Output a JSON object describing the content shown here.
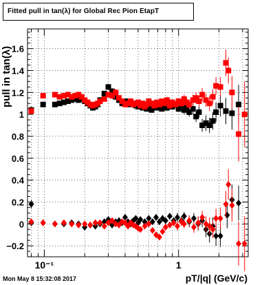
{
  "chart_data": {
    "type": "scatter",
    "title": "Fitted pull in tan(λ) for Global Rec Pion EtapT",
    "xlabel": "pT/|q| (GeV/c)",
    "ylabel": "pull in tan(λ)",
    "xscale": "log",
    "xlim": [
      0.075,
      3.3
    ],
    "ylim": [
      -0.3,
      1.78
    ],
    "grid": true,
    "x_major_ticks": [
      {
        "value": 0.1,
        "label": "10⁻¹"
      },
      {
        "value": 1,
        "label": "1"
      }
    ],
    "y_ticks": [
      {
        "value": -0.2,
        "label": "−0.2"
      },
      {
        "value": 0,
        "label": "0"
      },
      {
        "value": 0.2,
        "label": "0.2"
      },
      {
        "value": 0.4,
        "label": "0.4"
      },
      {
        "value": 0.6,
        "label": "0.6"
      },
      {
        "value": 0.8,
        "label": "0.8"
      },
      {
        "value": 1,
        "label": "1"
      },
      {
        "value": 1.2,
        "label": "1.2"
      },
      {
        "value": 1.4,
        "label": "1.4"
      },
      {
        "value": 1.6,
        "label": "1.6"
      }
    ],
    "series": [
      {
        "marker": "square",
        "color": "#000000",
        "points": [
          [
            0.08,
            1.04,
            0.03
          ],
          [
            0.098,
            1.09,
            0.02
          ],
          [
            0.12,
            1.09,
            0.01
          ],
          [
            0.13,
            1.1,
            0.01
          ],
          [
            0.14,
            1.11,
            0.01
          ],
          [
            0.15,
            1.12,
            0.01
          ],
          [
            0.16,
            1.13,
            0.01
          ],
          [
            0.17,
            1.14,
            0.01
          ],
          [
            0.18,
            1.13,
            0.01
          ],
          [
            0.19,
            1.14,
            0.01
          ],
          [
            0.2,
            1.12,
            0.01
          ],
          [
            0.21,
            1.1,
            0.01
          ],
          [
            0.22,
            1.08,
            0.01
          ],
          [
            0.23,
            1.06,
            0.01
          ],
          [
            0.24,
            1.07,
            0.01
          ],
          [
            0.25,
            1.09,
            0.01
          ],
          [
            0.26,
            1.13,
            0.02
          ],
          [
            0.28,
            1.19,
            0.02
          ],
          [
            0.3,
            1.25,
            0.03
          ],
          [
            0.32,
            1.21,
            0.03
          ],
          [
            0.34,
            1.16,
            0.03
          ],
          [
            0.36,
            1.13,
            0.02
          ],
          [
            0.38,
            1.1,
            0.02
          ],
          [
            0.4,
            1.12,
            0.02
          ],
          [
            0.42,
            1.09,
            0.02
          ],
          [
            0.44,
            1.11,
            0.02
          ],
          [
            0.46,
            1.1,
            0.02
          ],
          [
            0.48,
            1.08,
            0.02
          ],
          [
            0.5,
            1.07,
            0.02
          ],
          [
            0.52,
            1.09,
            0.02
          ],
          [
            0.54,
            1.06,
            0.02
          ],
          [
            0.56,
            1.08,
            0.02
          ],
          [
            0.58,
            1.05,
            0.02
          ],
          [
            0.6,
            1.07,
            0.02
          ],
          [
            0.63,
            1.04,
            0.02
          ],
          [
            0.66,
            1.08,
            0.02
          ],
          [
            0.69,
            1.06,
            0.02
          ],
          [
            0.72,
            1.09,
            0.02
          ],
          [
            0.75,
            1.05,
            0.02
          ],
          [
            0.78,
            1.08,
            0.02
          ],
          [
            0.82,
            1.06,
            0.03
          ],
          [
            0.86,
            1.1,
            0.03
          ],
          [
            0.9,
            1.07,
            0.03
          ],
          [
            0.95,
            1.09,
            0.03
          ],
          [
            1.0,
            1.05,
            0.03
          ],
          [
            1.05,
            1.08,
            0.03
          ],
          [
            1.1,
            1.04,
            0.04
          ],
          [
            1.15,
            1.06,
            0.04
          ],
          [
            1.2,
            1.02,
            0.04
          ],
          [
            1.28,
            1.05,
            0.05
          ],
          [
            1.35,
            0.98,
            0.05
          ],
          [
            1.42,
            1.02,
            0.05
          ],
          [
            1.5,
            0.9,
            0.06
          ],
          [
            1.6,
            0.92,
            0.07
          ],
          [
            1.7,
            0.9,
            0.07
          ],
          [
            1.8,
            0.94,
            0.08
          ],
          [
            1.9,
            1.02,
            0.09
          ],
          [
            2.05,
            1.08,
            0.1
          ],
          [
            2.25,
            1.03,
            0.12
          ],
          [
            2.5,
            1.01,
            0.15
          ],
          [
            2.8,
            1.09,
            0.18
          ]
        ]
      },
      {
        "marker": "square",
        "color": "#ff0000",
        "points": [
          [
            0.08,
            1.03,
            0.03
          ],
          [
            0.098,
            1.17,
            0.02
          ],
          [
            0.12,
            1.18,
            0.01
          ],
          [
            0.13,
            1.16,
            0.01
          ],
          [
            0.14,
            1.17,
            0.01
          ],
          [
            0.15,
            1.18,
            0.01
          ],
          [
            0.16,
            1.16,
            0.01
          ],
          [
            0.17,
            1.17,
            0.01
          ],
          [
            0.18,
            1.18,
            0.01
          ],
          [
            0.19,
            1.16,
            0.01
          ],
          [
            0.2,
            1.13,
            0.01
          ],
          [
            0.21,
            1.11,
            0.01
          ],
          [
            0.22,
            1.09,
            0.01
          ],
          [
            0.23,
            1.08,
            0.01
          ],
          [
            0.24,
            1.09,
            0.01
          ],
          [
            0.25,
            1.1,
            0.01
          ],
          [
            0.26,
            1.12,
            0.02
          ],
          [
            0.28,
            1.14,
            0.02
          ],
          [
            0.3,
            1.18,
            0.02
          ],
          [
            0.32,
            1.17,
            0.03
          ],
          [
            0.34,
            1.2,
            0.03
          ],
          [
            0.36,
            1.15,
            0.02
          ],
          [
            0.38,
            1.12,
            0.02
          ],
          [
            0.4,
            1.09,
            0.02
          ],
          [
            0.42,
            1.1,
            0.02
          ],
          [
            0.44,
            1.12,
            0.02
          ],
          [
            0.46,
            1.09,
            0.02
          ],
          [
            0.48,
            1.1,
            0.02
          ],
          [
            0.5,
            1.11,
            0.02
          ],
          [
            0.52,
            1.08,
            0.02
          ],
          [
            0.54,
            1.1,
            0.02
          ],
          [
            0.56,
            1.07,
            0.02
          ],
          [
            0.58,
            1.09,
            0.02
          ],
          [
            0.6,
            1.12,
            0.02
          ],
          [
            0.63,
            1.1,
            0.02
          ],
          [
            0.66,
            1.08,
            0.02
          ],
          [
            0.69,
            1.11,
            0.02
          ],
          [
            0.72,
            1.09,
            0.02
          ],
          [
            0.75,
            1.12,
            0.02
          ],
          [
            0.78,
            1.1,
            0.02
          ],
          [
            0.82,
            1.13,
            0.03
          ],
          [
            0.86,
            1.08,
            0.03
          ],
          [
            0.9,
            1.11,
            0.03
          ],
          [
            0.95,
            1.09,
            0.03
          ],
          [
            1.0,
            1.12,
            0.03
          ],
          [
            1.05,
            1.1,
            0.03
          ],
          [
            1.1,
            1.14,
            0.04
          ],
          [
            1.15,
            1.11,
            0.04
          ],
          [
            1.2,
            1.09,
            0.04
          ],
          [
            1.28,
            1.13,
            0.05
          ],
          [
            1.35,
            1.15,
            0.05
          ],
          [
            1.42,
            1.12,
            0.05
          ],
          [
            1.5,
            1.18,
            0.06
          ],
          [
            1.6,
            1.13,
            0.06
          ],
          [
            1.7,
            1.1,
            0.07
          ],
          [
            1.8,
            1.16,
            0.07
          ],
          [
            1.9,
            1.26,
            0.08
          ],
          [
            2.05,
            1.25,
            0.09
          ],
          [
            2.25,
            1.47,
            0.12
          ],
          [
            2.35,
            1.4,
            0.12
          ],
          [
            2.5,
            1.2,
            0.15
          ],
          [
            2.8,
            0.82,
            0.25
          ],
          [
            3.1,
            1.0,
            0.3
          ]
        ]
      },
      {
        "marker": "diamond",
        "color": "#000000",
        "points": [
          [
            0.08,
            0.18,
            0.04
          ],
          [
            0.08,
            0.01,
            0.03
          ],
          [
            0.098,
            0.01,
            0.02
          ],
          [
            0.12,
            0.0,
            0.01
          ],
          [
            0.14,
            0.0,
            0.01
          ],
          [
            0.16,
            0.01,
            0.01
          ],
          [
            0.18,
            0.0,
            0.01
          ],
          [
            0.2,
            -0.03,
            0.01
          ],
          [
            0.22,
            -0.01,
            0.01
          ],
          [
            0.24,
            -0.02,
            0.01
          ],
          [
            0.26,
            0.0,
            0.02
          ],
          [
            0.28,
            0.02,
            0.02
          ],
          [
            0.3,
            0.04,
            0.02
          ],
          [
            0.32,
            -0.01,
            0.02
          ],
          [
            0.34,
            0.02,
            0.02
          ],
          [
            0.36,
            0.03,
            0.02
          ],
          [
            0.38,
            0.01,
            0.02
          ],
          [
            0.4,
            0.06,
            0.02
          ],
          [
            0.42,
            0.02,
            0.02
          ],
          [
            0.44,
            0.0,
            0.02
          ],
          [
            0.46,
            0.03,
            0.02
          ],
          [
            0.48,
            0.05,
            0.02
          ],
          [
            0.5,
            0.01,
            0.02
          ],
          [
            0.52,
            0.04,
            0.02
          ],
          [
            0.56,
            0.02,
            0.02
          ],
          [
            0.6,
            0.05,
            0.02
          ],
          [
            0.64,
            0.02,
            0.02
          ],
          [
            0.68,
            0.06,
            0.03
          ],
          [
            0.72,
            0.02,
            0.03
          ],
          [
            0.76,
            0.05,
            0.03
          ],
          [
            0.8,
            0.03,
            0.03
          ],
          [
            0.86,
            0.07,
            0.03
          ],
          [
            0.92,
            0.03,
            0.03
          ],
          [
            0.98,
            0.06,
            0.04
          ],
          [
            1.05,
            0.03,
            0.04
          ],
          [
            1.1,
            0.07,
            0.04
          ],
          [
            1.2,
            0.02,
            0.05
          ],
          [
            1.3,
            0.05,
            0.05
          ],
          [
            1.4,
            0.0,
            0.06
          ],
          [
            1.5,
            0.03,
            0.06
          ],
          [
            1.6,
            -0.05,
            0.07
          ],
          [
            1.7,
            -0.09,
            0.08
          ],
          [
            1.8,
            -0.02,
            0.08
          ],
          [
            1.9,
            -0.11,
            0.09
          ],
          [
            2.05,
            -0.11,
            0.1
          ],
          [
            2.3,
            0.08,
            0.12
          ],
          [
            2.5,
            0.22,
            0.14
          ],
          [
            2.8,
            0.19,
            0.16
          ]
        ]
      },
      {
        "marker": "diamond",
        "color": "#ff0000",
        "points": [
          [
            0.08,
            0.02,
            0.03
          ],
          [
            0.098,
            0.01,
            0.02
          ],
          [
            0.12,
            0.0,
            0.01
          ],
          [
            0.14,
            0.01,
            0.01
          ],
          [
            0.16,
            0.0,
            0.01
          ],
          [
            0.18,
            -0.01,
            0.01
          ],
          [
            0.2,
            0.0,
            0.01
          ],
          [
            0.22,
            -0.01,
            0.01
          ],
          [
            0.24,
            0.01,
            0.01
          ],
          [
            0.26,
            0.01,
            0.02
          ],
          [
            0.28,
            -0.02,
            0.02
          ],
          [
            0.3,
            0.01,
            0.02
          ],
          [
            0.32,
            0.03,
            0.02
          ],
          [
            0.34,
            0.0,
            0.02
          ],
          [
            0.36,
            -0.01,
            0.02
          ],
          [
            0.38,
            0.02,
            0.02
          ],
          [
            0.4,
            0.01,
            0.02
          ],
          [
            0.42,
            -0.02,
            0.02
          ],
          [
            0.44,
            0.01,
            0.02
          ],
          [
            0.46,
            -0.01,
            0.02
          ],
          [
            0.48,
            -0.02,
            0.02
          ],
          [
            0.5,
            -0.04,
            0.02
          ],
          [
            0.52,
            -0.05,
            0.02
          ],
          [
            0.56,
            -0.02,
            0.02
          ],
          [
            0.6,
            0.0,
            0.02
          ],
          [
            0.64,
            -0.06,
            0.02
          ],
          [
            0.68,
            -0.1,
            0.03
          ],
          [
            0.72,
            -0.12,
            0.03
          ],
          [
            0.76,
            -0.07,
            0.03
          ],
          [
            0.8,
            -0.03,
            0.03
          ],
          [
            0.86,
            -0.01,
            0.03
          ],
          [
            0.92,
            0.01,
            0.03
          ],
          [
            0.98,
            -0.02,
            0.04
          ],
          [
            1.05,
            0.02,
            0.04
          ],
          [
            1.1,
            0.0,
            0.04
          ],
          [
            1.2,
            0.03,
            0.05
          ],
          [
            1.3,
            -0.03,
            0.05
          ],
          [
            1.4,
            0.01,
            0.06
          ],
          [
            1.5,
            0.06,
            0.06
          ],
          [
            1.6,
            0.0,
            0.07
          ],
          [
            1.7,
            -0.02,
            0.08
          ],
          [
            1.8,
            -0.05,
            0.08
          ],
          [
            1.9,
            0.05,
            0.09
          ],
          [
            2.05,
            0.05,
            0.1
          ],
          [
            2.25,
            0.18,
            0.12
          ],
          [
            2.35,
            0.36,
            0.14
          ],
          [
            2.5,
            0.17,
            0.15
          ],
          [
            2.8,
            -0.18,
            0.2
          ],
          [
            3.1,
            -0.18,
            0.25
          ]
        ]
      }
    ]
  },
  "title_box": {
    "text": "Fitted pull in tan(λ) for Global Rec Pion EtapT"
  },
  "footer": {
    "timestamp": "Mon May  8 15:32:08 2017"
  },
  "axis_labels": {
    "x": "pT/|q| (GeV/c)",
    "y": "pull in tan(λ)"
  }
}
